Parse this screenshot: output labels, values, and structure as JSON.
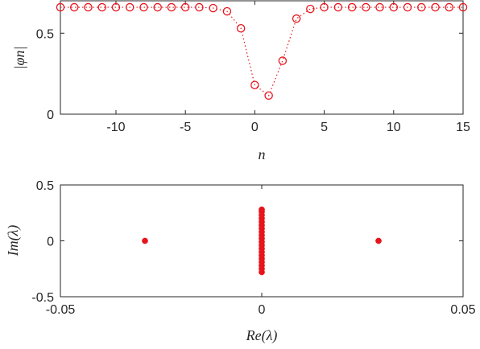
{
  "chart_data": [
    {
      "type": "line",
      "title": "",
      "xlabel": "n",
      "ylabel": "|φn|",
      "xlim": [
        -14,
        15
      ],
      "ylim": [
        0,
        0.7
      ],
      "xticks": [
        -10,
        -5,
        0,
        5,
        10,
        15
      ],
      "xtick_labels": [
        "-10",
        "-5",
        "0",
        "5",
        "10",
        "15"
      ],
      "yticks": [
        0,
        0.5
      ],
      "ytick_labels": [
        "0",
        "0.5"
      ],
      "grid": false,
      "legend": "none",
      "marker": "open-circle",
      "line_style": "dotted",
      "color": "#e8141b",
      "series": [
        {
          "x": [
            -14,
            -13,
            -12,
            -11,
            -10,
            -9,
            -8,
            -7,
            -6,
            -5,
            -4,
            -3,
            -2,
            -1,
            0,
            1,
            2,
            3,
            4,
            5,
            6,
            7,
            8,
            9,
            10,
            11,
            12,
            13,
            14,
            15
          ],
          "y": [
            0.66,
            0.66,
            0.66,
            0.66,
            0.66,
            0.66,
            0.66,
            0.66,
            0.66,
            0.66,
            0.66,
            0.655,
            0.635,
            0.53,
            0.18,
            0.115,
            0.33,
            0.59,
            0.65,
            0.66,
            0.66,
            0.66,
            0.66,
            0.66,
            0.66,
            0.66,
            0.66,
            0.66,
            0.66,
            0.66
          ]
        }
      ]
    },
    {
      "type": "scatter",
      "title": "",
      "xlabel": "Re(λ)",
      "ylabel": "Im(λ)",
      "xlim": [
        -0.05,
        0.05
      ],
      "ylim": [
        -0.5,
        0.5
      ],
      "xticks": [
        -0.05,
        0,
        0.05
      ],
      "xtick_labels": [
        "-0.05",
        "0",
        "0.05"
      ],
      "yticks": [
        -0.5,
        0,
        0.5
      ],
      "ytick_labels": [
        "-0.5",
        "0",
        "0.5"
      ],
      "grid": false,
      "legend": "none",
      "marker": "filled-dot",
      "color": "#e8141b",
      "series": [
        {
          "points": [
            [
              -0.029,
              0
            ],
            [
              0.029,
              0
            ],
            [
              0,
              -0.28
            ],
            [
              0,
              -0.25
            ],
            [
              0,
              -0.22
            ],
            [
              0,
              -0.19
            ],
            [
              0,
              -0.16
            ],
            [
              0,
              -0.13
            ],
            [
              0,
              -0.1
            ],
            [
              0,
              -0.07
            ],
            [
              0,
              -0.04
            ],
            [
              0,
              -0.01
            ],
            [
              0,
              0.02
            ],
            [
              0,
              0.05
            ],
            [
              0,
              0.08
            ],
            [
              0,
              0.11
            ],
            [
              0,
              0.14
            ],
            [
              0,
              0.17
            ],
            [
              0,
              0.2
            ],
            [
              0,
              0.23
            ],
            [
              0,
              0.26
            ],
            [
              0,
              0.28
            ]
          ]
        }
      ]
    }
  ]
}
